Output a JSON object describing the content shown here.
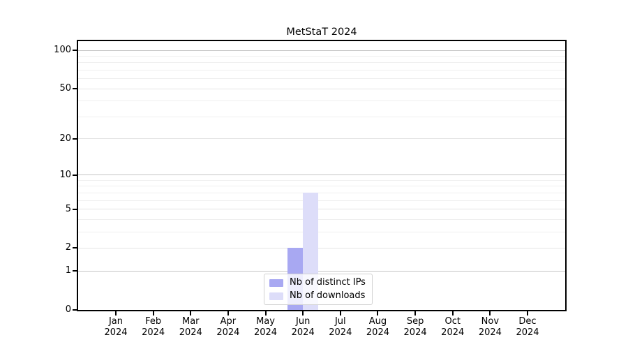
{
  "title": "MetStaT 2024",
  "chart_data": {
    "type": "bar",
    "title": "MetStaT 2024",
    "categories": [
      "Jan",
      "Feb",
      "Mar",
      "Apr",
      "May",
      "Jun",
      "Jul",
      "Aug",
      "Sep",
      "Oct",
      "Nov",
      "Dec"
    ],
    "category_year": "2024",
    "series": [
      {
        "name": "Nb of distinct IPs",
        "color": "#a8a8f2",
        "values": [
          0,
          0,
          0,
          0,
          0,
          2,
          0,
          0,
          0,
          0,
          0,
          0
        ]
      },
      {
        "name": "Nb of downloads",
        "color": "#ddddf9",
        "values": [
          0,
          0,
          0,
          0,
          0,
          7,
          0,
          0,
          0,
          0,
          0,
          0
        ]
      }
    ],
    "yscale": "log1p",
    "ylim": [
      0,
      118
    ],
    "y_ticks": [
      0,
      1,
      2,
      5,
      10,
      20,
      50,
      100
    ],
    "y_minor_gridlines": [
      3,
      4,
      6,
      7,
      8,
      9,
      30,
      40,
      60,
      70,
      80,
      90
    ],
    "y_emphasis_gridlines": [
      1,
      10,
      100
    ],
    "xlabel": "",
    "ylabel": "",
    "grid": true,
    "legend_position": "lower center",
    "colors": {
      "grid_minor": "#efefef",
      "grid_major": "#e4e4e4",
      "grid_emphasis": "#c4c4c4",
      "axis": "#000000",
      "background": "#ffffff"
    }
  }
}
